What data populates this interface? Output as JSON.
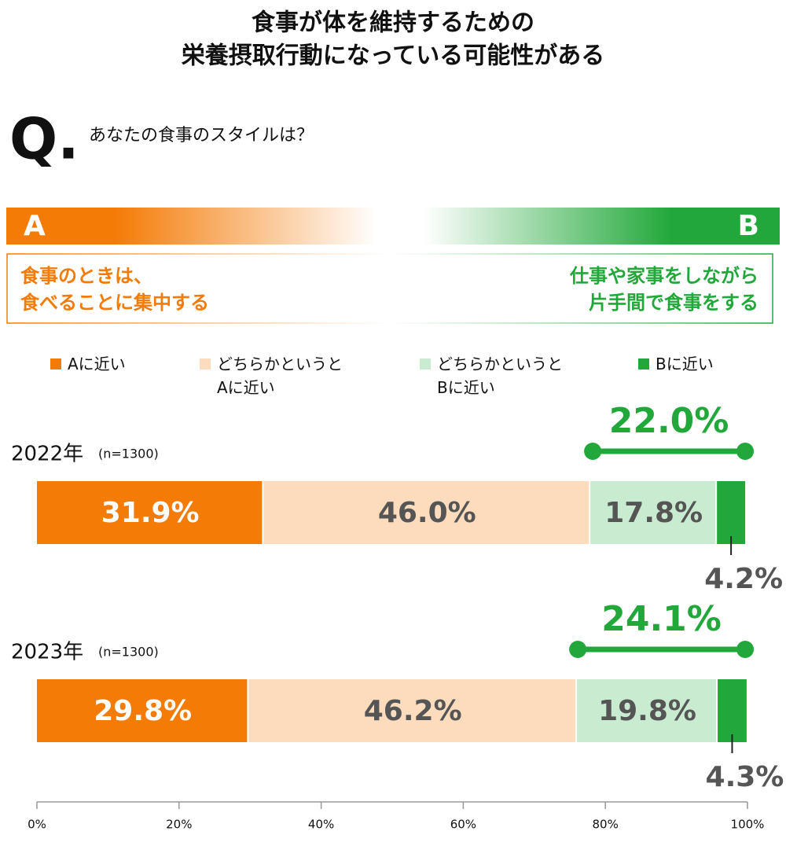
{
  "chart_data": {
    "type": "stacked-bar",
    "title": [
      "食事が体を維持するための",
      "栄養摂取行動になっている可能性がある"
    ],
    "question_mark": "Q.",
    "question": "あなたの食事のスタイルは？",
    "scale_left": "A",
    "scale_right": "B",
    "description_left": [
      "食事のときは、",
      "食べることに集中する"
    ],
    "description_right": [
      "仕事や家事をしながら",
      "片手間で食事をする"
    ],
    "categories": [
      "2022年",
      "2023年"
    ],
    "sample_sizes": [
      "(n=1300)",
      "(n=1300)"
    ],
    "series": [
      {
        "name": "Aに近い",
        "color": "#f47b06",
        "values": [
          31.9,
          29.8
        ],
        "value_labels": [
          "31.9%",
          "29.8%"
        ]
      },
      {
        "name": "どちらかというとAに近い",
        "color": "#fcdcbd",
        "values": [
          46.0,
          46.2
        ],
        "value_labels": [
          "46.0%",
          "46.2%"
        ]
      },
      {
        "name": "どちらかというとBに近い",
        "color": "#c9ebd0",
        "values": [
          17.8,
          19.8
        ],
        "value_labels": [
          "17.8%",
          "19.8%"
        ]
      },
      {
        "name": "Bに近い",
        "color": "#22a83a",
        "values": [
          4.2,
          4.3
        ],
        "value_labels": [
          "4.2%",
          "4.3%"
        ]
      }
    ],
    "totals": {
      "color": "#22a83a",
      "values": [
        22.0,
        24.1
      ],
      "value_labels": [
        "22.0%",
        "24.1%"
      ]
    },
    "xlim": [
      0,
      100
    ],
    "xticks": [
      {
        "value": 0,
        "label": "0%"
      },
      {
        "value": 20,
        "label": "20%"
      },
      {
        "value": 40,
        "label": "40%"
      },
      {
        "value": 60,
        "label": "60%"
      },
      {
        "value": 80,
        "label": "80%"
      },
      {
        "value": 100,
        "label": "100%"
      }
    ]
  }
}
